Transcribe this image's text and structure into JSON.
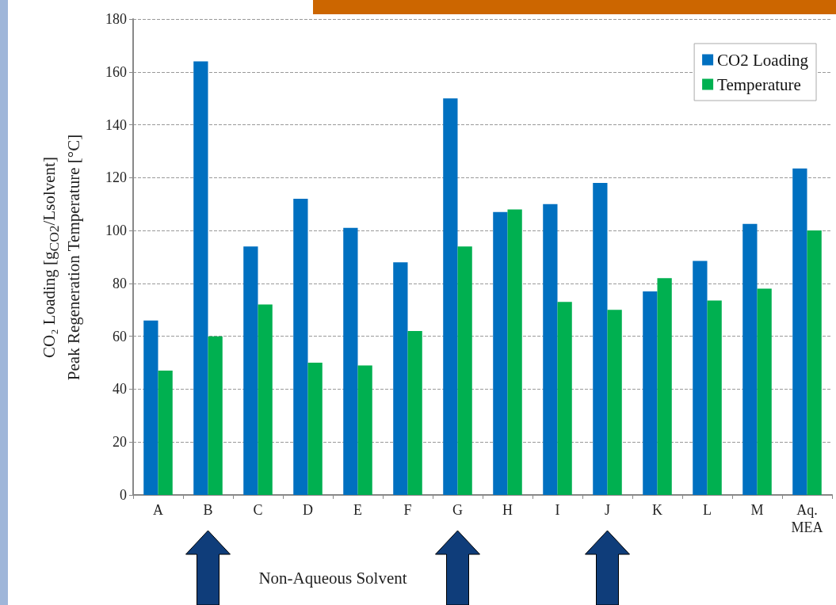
{
  "chart_data": {
    "type": "bar",
    "xlabel": "Non-Aqueous Solvent",
    "ylabel": "CO₂ Loading [g$_{CO2}$/Lsolvent]\nPeak Regeneration Temperature [°C]",
    "categories": [
      "A",
      "B",
      "C",
      "D",
      "E",
      "F",
      "G",
      "H",
      "I",
      "J",
      "K",
      "L",
      "M",
      "Aq.\nMEA"
    ],
    "series": [
      {
        "name": "CO2 Loading",
        "color": "#0070c0",
        "values": [
          66,
          164,
          94,
          112,
          101,
          88,
          150,
          107,
          110,
          118,
          77,
          88.5,
          102.5,
          123.5
        ]
      },
      {
        "name": "Temperature",
        "color": "#00b050",
        "values": [
          47,
          60,
          72,
          50,
          49,
          62,
          94,
          108,
          73,
          70,
          82,
          73.5,
          78,
          100
        ]
      }
    ],
    "ylim": [
      0,
      180
    ],
    "yticks": [
      0,
      20,
      40,
      60,
      80,
      100,
      120,
      140,
      160,
      180
    ],
    "grid": "y",
    "legend": "top right",
    "line_style": "dashed"
  }
}
